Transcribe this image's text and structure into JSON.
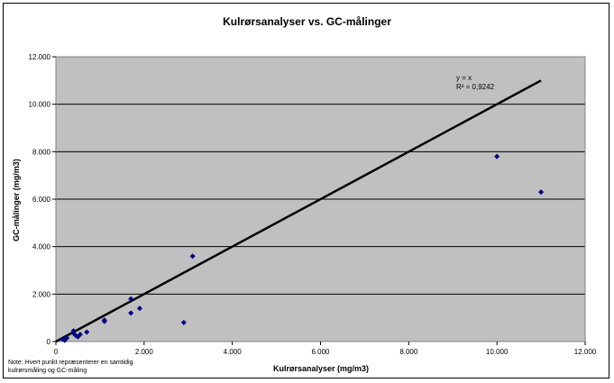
{
  "chart_data": {
    "type": "scatter",
    "title": "Kulrørsanalyser vs. GC-målinger",
    "xlabel": "Kulrørsanalyser (mg/m3)",
    "ylabel": "GC-målinger (mg/m3)",
    "xlim": [
      0,
      12000
    ],
    "ylim": [
      0,
      12000
    ],
    "x_ticks": [
      "0",
      "2.000",
      "4.000",
      "6.000",
      "8.000",
      "10.000",
      "12.000"
    ],
    "y_ticks": [
      "0",
      "2.000",
      "4.000",
      "6.000",
      "8.000",
      "10.000",
      "12.000"
    ],
    "x_tick_values": [
      0,
      2000,
      4000,
      6000,
      8000,
      10000,
      12000
    ],
    "y_tick_values": [
      0,
      2000,
      4000,
      6000,
      8000,
      10000,
      12000
    ],
    "grid": "horizontal",
    "plot_background": "#c0c0c0",
    "marker_color": "#000080",
    "line_color": "#000000",
    "points": [
      {
        "x": 150,
        "y": 100
      },
      {
        "x": 200,
        "y": 50
      },
      {
        "x": 250,
        "y": 150
      },
      {
        "x": 400,
        "y": 350
      },
      {
        "x": 400,
        "y": 450
      },
      {
        "x": 450,
        "y": 250
      },
      {
        "x": 500,
        "y": 200
      },
      {
        "x": 550,
        "y": 300
      },
      {
        "x": 700,
        "y": 400
      },
      {
        "x": 1100,
        "y": 900
      },
      {
        "x": 1100,
        "y": 850
      },
      {
        "x": 1700,
        "y": 1800
      },
      {
        "x": 1700,
        "y": 1200
      },
      {
        "x": 1900,
        "y": 1400
      },
      {
        "x": 2900,
        "y": 800
      },
      {
        "x": 3100,
        "y": 3600
      },
      {
        "x": 10000,
        "y": 7800
      },
      {
        "x": 11000,
        "y": 6300
      }
    ],
    "trendline": {
      "from": [
        0,
        0
      ],
      "to": [
        11000,
        11000
      ]
    },
    "annotations": [
      "y = x",
      "R² = 0,9242"
    ]
  },
  "note_lines": [
    "Note: Hvert punkt repræsenterer en samtidig",
    "kulrørsmåling og GC-måling"
  ]
}
